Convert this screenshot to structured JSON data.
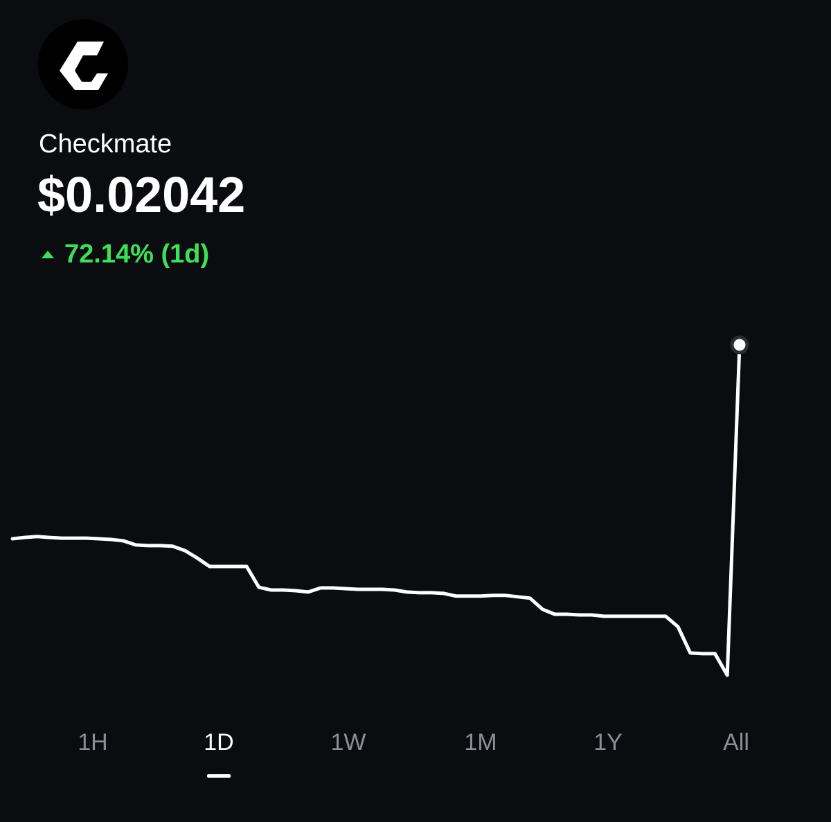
{
  "header": {
    "title": "Checkmate",
    "price": "$0.02042",
    "change": "72.14% (1d)"
  },
  "chart_data": {
    "type": "line",
    "color": "#ffffff",
    "values": [
      0.01186,
      0.01192,
      0.01196,
      0.01192,
      0.01189,
      0.01189,
      0.01189,
      0.01186,
      0.01183,
      0.01177,
      0.01159,
      0.01156,
      0.01156,
      0.01153,
      0.01134,
      0.01101,
      0.01064,
      0.01064,
      0.01064,
      0.01064,
      0.00972,
      0.0096,
      0.0096,
      0.00957,
      0.00951,
      0.00969,
      0.00969,
      0.00966,
      0.00963,
      0.00963,
      0.00963,
      0.0096,
      0.00951,
      0.00948,
      0.00948,
      0.00945,
      0.00933,
      0.00933,
      0.00933,
      0.00936,
      0.00936,
      0.0093,
      0.00924,
      0.00875,
      0.00853,
      0.00853,
      0.0085,
      0.0085,
      0.00844,
      0.00844,
      0.00844,
      0.00844,
      0.00844,
      0.00844,
      0.00798,
      0.00682,
      0.00679,
      0.00679,
      0.00584,
      0.02042
    ]
  },
  "tabs": {
    "items": [
      "1H",
      "1D",
      "1W",
      "1M",
      "1Y",
      "All"
    ],
    "selected": 1
  }
}
